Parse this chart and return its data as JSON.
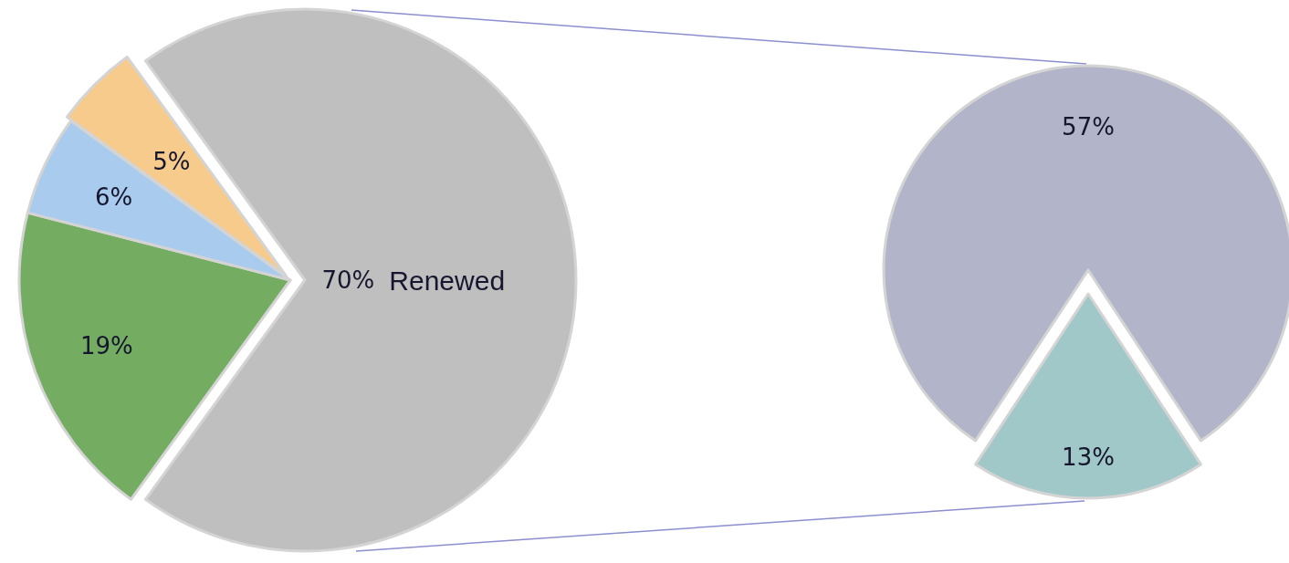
{
  "chart_data": [
    {
      "type": "pie",
      "categories": [
        "Renewed",
        null,
        null,
        null
      ],
      "values": [
        70,
        19,
        6,
        5
      ],
      "colors": [
        "#bfbfbf",
        "#74ad62",
        "#a9cbee",
        "#f6cb8c"
      ],
      "value_labels": [
        "70%",
        "19%",
        "6%",
        "5%"
      ]
    },
    {
      "type": "pie",
      "categories": [
        null,
        null
      ],
      "values": [
        57,
        13
      ],
      "colors": [
        "#b2b5c9",
        "#a1c8c8"
      ],
      "value_labels": [
        "57%",
        "13%"
      ]
    }
  ]
}
